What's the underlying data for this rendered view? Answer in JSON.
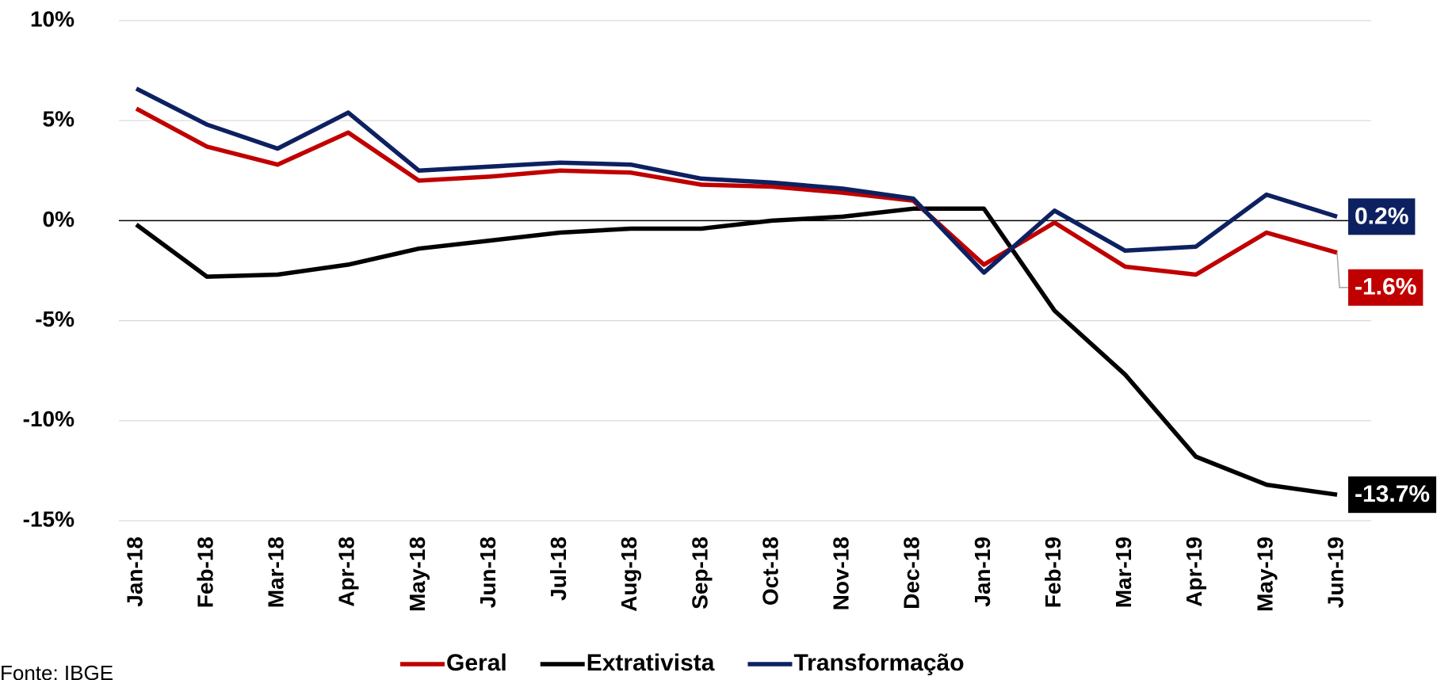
{
  "chart_data": {
    "type": "line",
    "categories": [
      "Jan-18",
      "Feb-18",
      "Mar-18",
      "Apr-18",
      "May-18",
      "Jun-18",
      "Jul-18",
      "Aug-18",
      "Sep-18",
      "Oct-18",
      "Nov-18",
      "Dec-18",
      "Jan-19",
      "Feb-19",
      "Mar-19",
      "Apr-19",
      "May-19",
      "Jun-19"
    ],
    "series": [
      {
        "name": "Geral",
        "color": "#c00000",
        "values": [
          5.6,
          3.7,
          2.8,
          4.4,
          2.0,
          2.2,
          2.5,
          2.4,
          1.8,
          1.7,
          1.4,
          1.0,
          -2.2,
          -0.1,
          -2.3,
          -2.7,
          -0.6,
          -1.6
        ],
        "value_labels": [
          null,
          null,
          null,
          null,
          null,
          null,
          null,
          null,
          null,
          null,
          null,
          null,
          null,
          null,
          null,
          null,
          null,
          "-1.6%"
        ]
      },
      {
        "name": "Extrativista",
        "color": "#000000",
        "values": [
          -0.2,
          -2.8,
          -2.7,
          -2.2,
          -1.4,
          -1.0,
          -0.6,
          -0.4,
          -0.4,
          0.0,
          0.2,
          0.6,
          0.6,
          -4.5,
          -7.7,
          -11.8,
          -13.2,
          -13.7
        ],
        "value_labels": [
          null,
          null,
          null,
          null,
          null,
          null,
          null,
          null,
          null,
          null,
          null,
          null,
          null,
          null,
          null,
          null,
          null,
          "-13.7%"
        ]
      },
      {
        "name": "Transformação",
        "color": "#0d2161",
        "values": [
          6.6,
          4.8,
          3.6,
          5.4,
          2.5,
          2.7,
          2.9,
          2.8,
          2.1,
          1.9,
          1.6,
          1.1,
          -2.6,
          0.5,
          -1.5,
          -1.3,
          1.3,
          0.2
        ],
        "value_labels": [
          null,
          null,
          null,
          null,
          null,
          null,
          null,
          null,
          null,
          null,
          null,
          null,
          null,
          null,
          null,
          null,
          null,
          "0.2%"
        ]
      }
    ],
    "ylim": [
      -15,
      10
    ],
    "yticks": [
      {
        "value": 10,
        "label": "10%"
      },
      {
        "value": 5,
        "label": "5%"
      },
      {
        "value": 0,
        "label": "0%"
      },
      {
        "value": -5,
        "label": "-5%"
      },
      {
        "value": -10,
        "label": "-10%"
      },
      {
        "value": -15,
        "label": "-15%"
      }
    ],
    "grid": true,
    "source": "Fonte: IBGE"
  }
}
